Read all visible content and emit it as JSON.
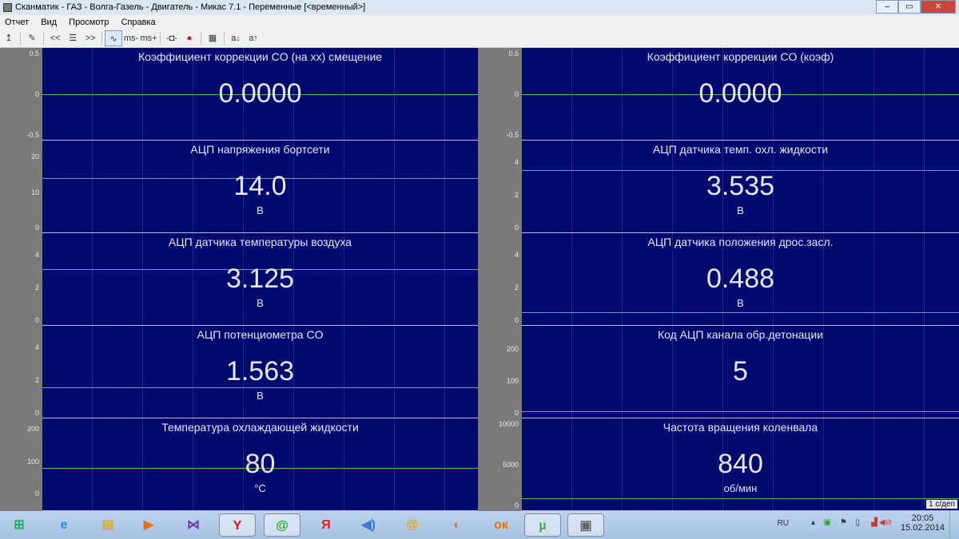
{
  "window": {
    "title": "Сканматик - ГАЗ - Волга-Газель - Двигатель - Микас 7.1 - Переменные [<временный>]",
    "minimize": "–",
    "maximize": "▭",
    "close": "✕"
  },
  "menu": [
    "Отчет",
    "Вид",
    "Просмотр",
    "Справка"
  ],
  "toolbar": [
    {
      "icon": "upload-arrow-icon",
      "glyph": "↥"
    },
    {
      "sep": true
    },
    {
      "icon": "edit-icon",
      "glyph": "✎"
    },
    {
      "sep": true
    },
    {
      "icon": "previous-icon",
      "glyph": "<<"
    },
    {
      "icon": "list-icon",
      "glyph": "☰"
    },
    {
      "icon": "next-icon",
      "glyph": ">>"
    },
    {
      "sep": true
    },
    {
      "icon": "waveform-icon",
      "glyph": "∿",
      "pressed": true
    },
    {
      "icon": "ms-minus-icon",
      "glyph": "ms-"
    },
    {
      "icon": "ms-plus-icon",
      "glyph": "ms+"
    },
    {
      "sep": true
    },
    {
      "icon": "probe-icon",
      "glyph": "-◘-"
    },
    {
      "icon": "record-icon",
      "glyph": "●",
      "color": "#e01010"
    },
    {
      "sep": true
    },
    {
      "icon": "save-icon",
      "glyph": "▦"
    },
    {
      "sep": true
    },
    {
      "icon": "font-decrease-icon",
      "glyph": "a↓"
    },
    {
      "icon": "font-increase-icon",
      "glyph": "a↑"
    }
  ],
  "panels": [
    {
      "title": "Коэффициент коррекции CO (на хх) смещение",
      "value": "0.0000",
      "unit": "",
      "ticks": [
        "0.5",
        "0",
        "-0.5"
      ],
      "ylim": [
        -0.5,
        0.5
      ],
      "level": 0
    },
    {
      "title": "Коэффициент коррекции CO (коэф)",
      "value": "0.0000",
      "unit": "",
      "ticks": [
        "0.5",
        "0",
        "-0.5"
      ],
      "ylim": [
        -0.5,
        0.5
      ],
      "level": 0
    },
    {
      "title": "АЦП напряжения бортсети",
      "value": "14.0",
      "unit": "В",
      "ticks": [
        "20",
        "10",
        "0"
      ],
      "ylim": [
        0,
        23
      ],
      "level": 14.0
    },
    {
      "title": "АЦП датчика темп. охл. жидкости",
      "value": "3.535",
      "unit": "В",
      "ticks": [
        "4",
        "2",
        "0"
      ],
      "ylim": [
        0,
        5
      ],
      "level": 3.535
    },
    {
      "title": "АЦП датчика температуры воздуха",
      "value": "3.125",
      "unit": "В",
      "ticks": [
        "4",
        "2",
        "0"
      ],
      "ylim": [
        0,
        5
      ],
      "level": 3.125
    },
    {
      "title": "АЦП датчика положения дрос.засл.",
      "value": "0.488",
      "unit": "В",
      "ticks": [
        "4",
        "2",
        "0"
      ],
      "ylim": [
        0,
        5
      ],
      "level": 0.488
    },
    {
      "title": "АЦП потенциометра CO",
      "value": "1.563",
      "unit": "В",
      "ticks": [
        "4",
        "2",
        "0"
      ],
      "ylim": [
        0,
        5
      ],
      "level": 1.563
    },
    {
      "title": "Код АЦП канала обр.детонации",
      "value": "5",
      "unit": "",
      "ticks": [
        "200",
        "100",
        "0"
      ],
      "ylim": [
        0,
        255
      ],
      "level": 5
    },
    {
      "title": "Температура охлаждающей жидкости",
      "value": "80",
      "unit": "°C",
      "ticks": [
        "200",
        "100",
        "0"
      ],
      "ylim": [
        -37,
        215
      ],
      "level": 80
    },
    {
      "title": "Частота вращения коленвала",
      "value": "840",
      "unit": "об/мин",
      "ticks": [
        "10000",
        "5000",
        "0"
      ],
      "ylim": [
        0,
        10000
      ],
      "level": 840
    }
  ],
  "time_scale": "1 с/деп",
  "taskbar": {
    "items": [
      "start-orb",
      "internet-explorer",
      "file-explorer",
      "media-player",
      "kmplayer",
      "yandex-browser",
      "icq",
      "yandex",
      "audio-player",
      "mail-agent",
      "game",
      "odnoklassniki",
      "utorrent",
      "scanmatik"
    ],
    "tray": {
      "language": "RU",
      "time": "20:05",
      "date": "15.02.2014"
    }
  },
  "colors": {
    "plot_bg": "#000a6e",
    "trace": "#3fc06a",
    "axis_bg": "#7a7a7a"
  }
}
